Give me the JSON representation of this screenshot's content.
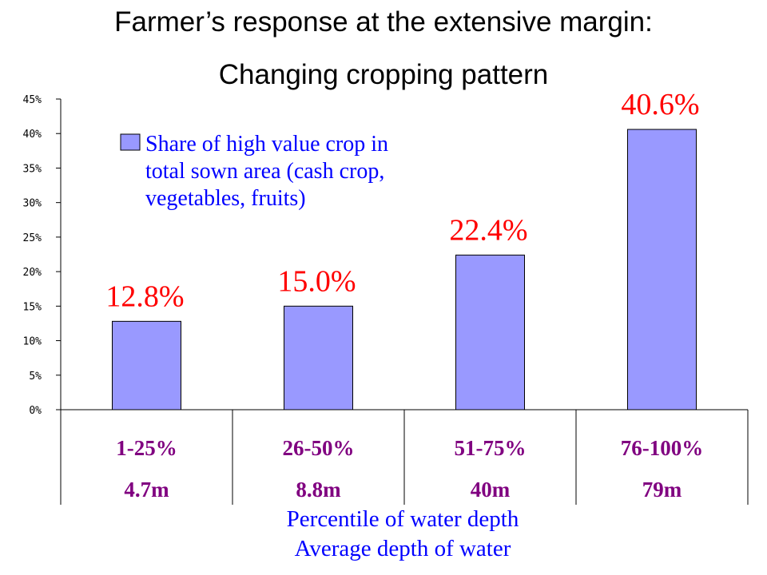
{
  "title": "Farmer’s response at the extensive margin:",
  "subtitle": "Changing cropping pattern",
  "colors": {
    "bar": "#9999ff",
    "data_label": "#ff0000",
    "category_text": "#800080",
    "legend_text": "#0000ff",
    "axis_title": "#0000ff"
  },
  "chart_data": {
    "type": "bar",
    "categories": [
      "1-25%",
      "26-50%",
      "51-75%",
      "76-100%"
    ],
    "secondary_categories": [
      "4.7m",
      "8.8m",
      "40m",
      "79m"
    ],
    "values": [
      12.8,
      15.0,
      22.4,
      40.6
    ],
    "data_labels": [
      "12.8%",
      "15.0%",
      "22.4%",
      "40.6%"
    ],
    "yticks": [
      "0%",
      "5%",
      "10%",
      "15%",
      "20%",
      "25%",
      "30%",
      "35%",
      "40%",
      "45%"
    ],
    "ylim": [
      0,
      45
    ],
    "legend": {
      "lines": [
        "Share of high value crop in",
        "total sown area (cash crop,",
        "vegetables, fruits)"
      ],
      "position": "top-left"
    },
    "xlabel_lines": [
      "Percentile of water depth",
      "Average depth of water"
    ],
    "grid": false
  }
}
